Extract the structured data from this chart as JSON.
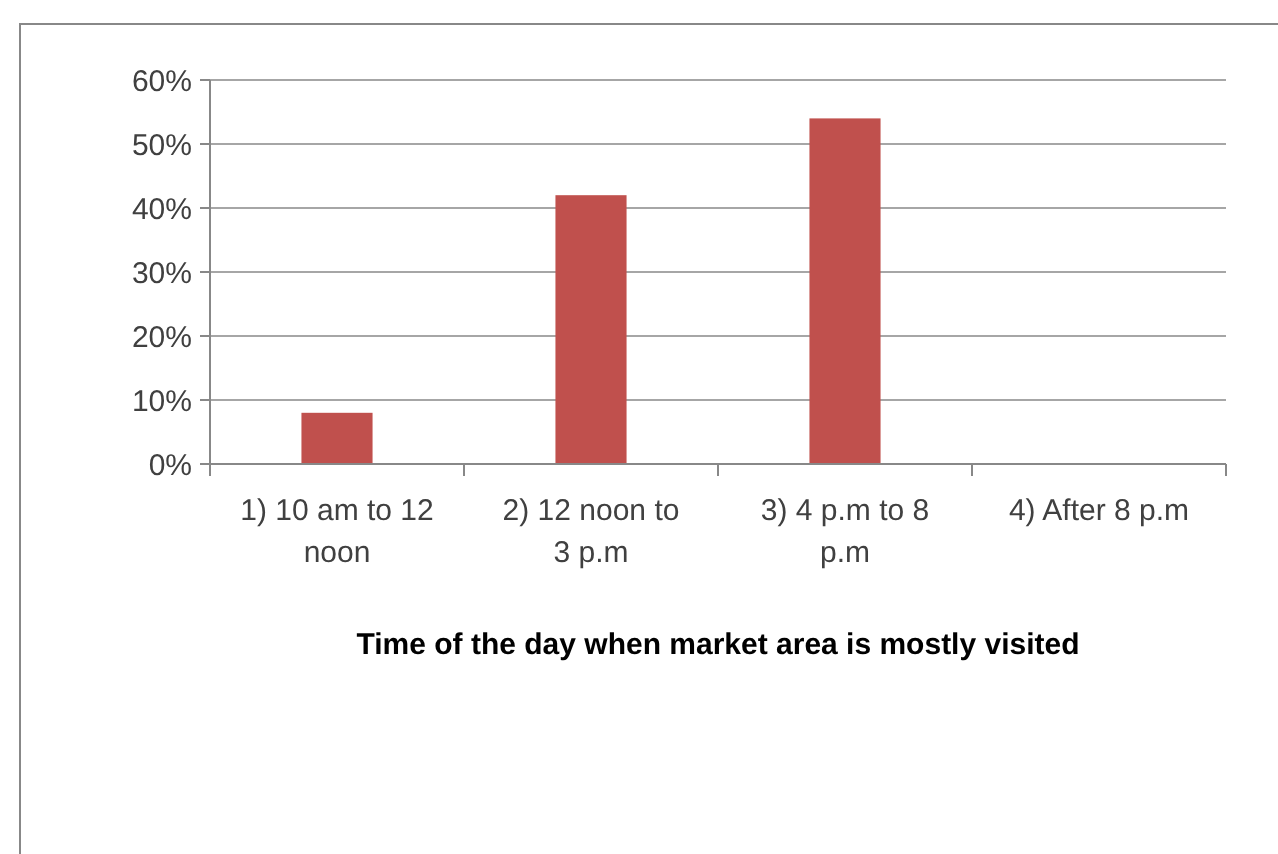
{
  "chart_data": {
    "type": "bar",
    "xlabel": "Time of the day when market area is mostly visited",
    "categories": [
      "1) 10 am to 12 noon",
      "2) 12 noon to 3 p.m",
      "3) 4 p.m to 8 p.m",
      "4) After 8 p.m"
    ],
    "values": [
      8,
      42,
      54,
      0
    ],
    "color": "#c0504d",
    "ylim": [
      0,
      60
    ],
    "yticks": [
      {
        "value": 0,
        "label": "0%"
      },
      {
        "value": 10,
        "label": "10%"
      },
      {
        "value": 20,
        "label": "20%"
      },
      {
        "value": 30,
        "label": "30%"
      },
      {
        "value": 40,
        "label": "40%"
      },
      {
        "value": 50,
        "label": "50%"
      },
      {
        "value": 60,
        "label": "60%"
      }
    ],
    "grid": "y"
  }
}
